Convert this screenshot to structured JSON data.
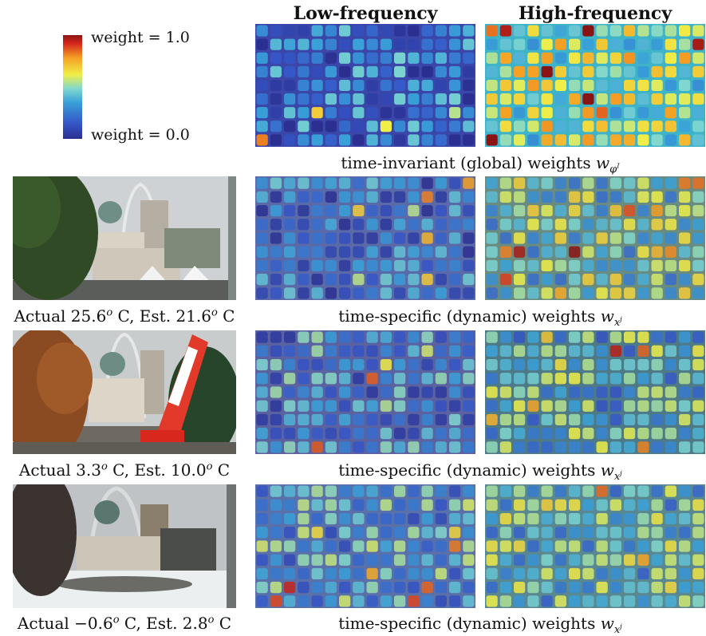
{
  "colorbar": {
    "top_label": "weight = 1.0",
    "bottom_label": "weight = 0.0"
  },
  "headers": {
    "low": "Low-frequency",
    "high": "High-frequency"
  },
  "global_caption": {
    "text": "time-invariant (global) weights ",
    "var": "w",
    "sub": "φ",
    "subsup": "I"
  },
  "dynamic_caption": {
    "text": "time-specific (dynamic) weights ",
    "var": "w",
    "sub": "x",
    "subsup": "j"
  },
  "rows": [
    {
      "pre": "Actual 25.6",
      "mid": " C, Est. 21.6",
      "post": " C",
      "deg": "o"
    },
    {
      "pre": "Actual 3.3",
      "mid": " C, Est. 10.0",
      "post": " C",
      "deg": "o"
    },
    {
      "pre": "Actual −0.6",
      "mid": " C, Est. 2.8",
      "post": " C",
      "deg": "o"
    }
  ],
  "colors": {
    "low_bg": "#3a47a8",
    "high_bg": "#3fb4c8"
  }
}
